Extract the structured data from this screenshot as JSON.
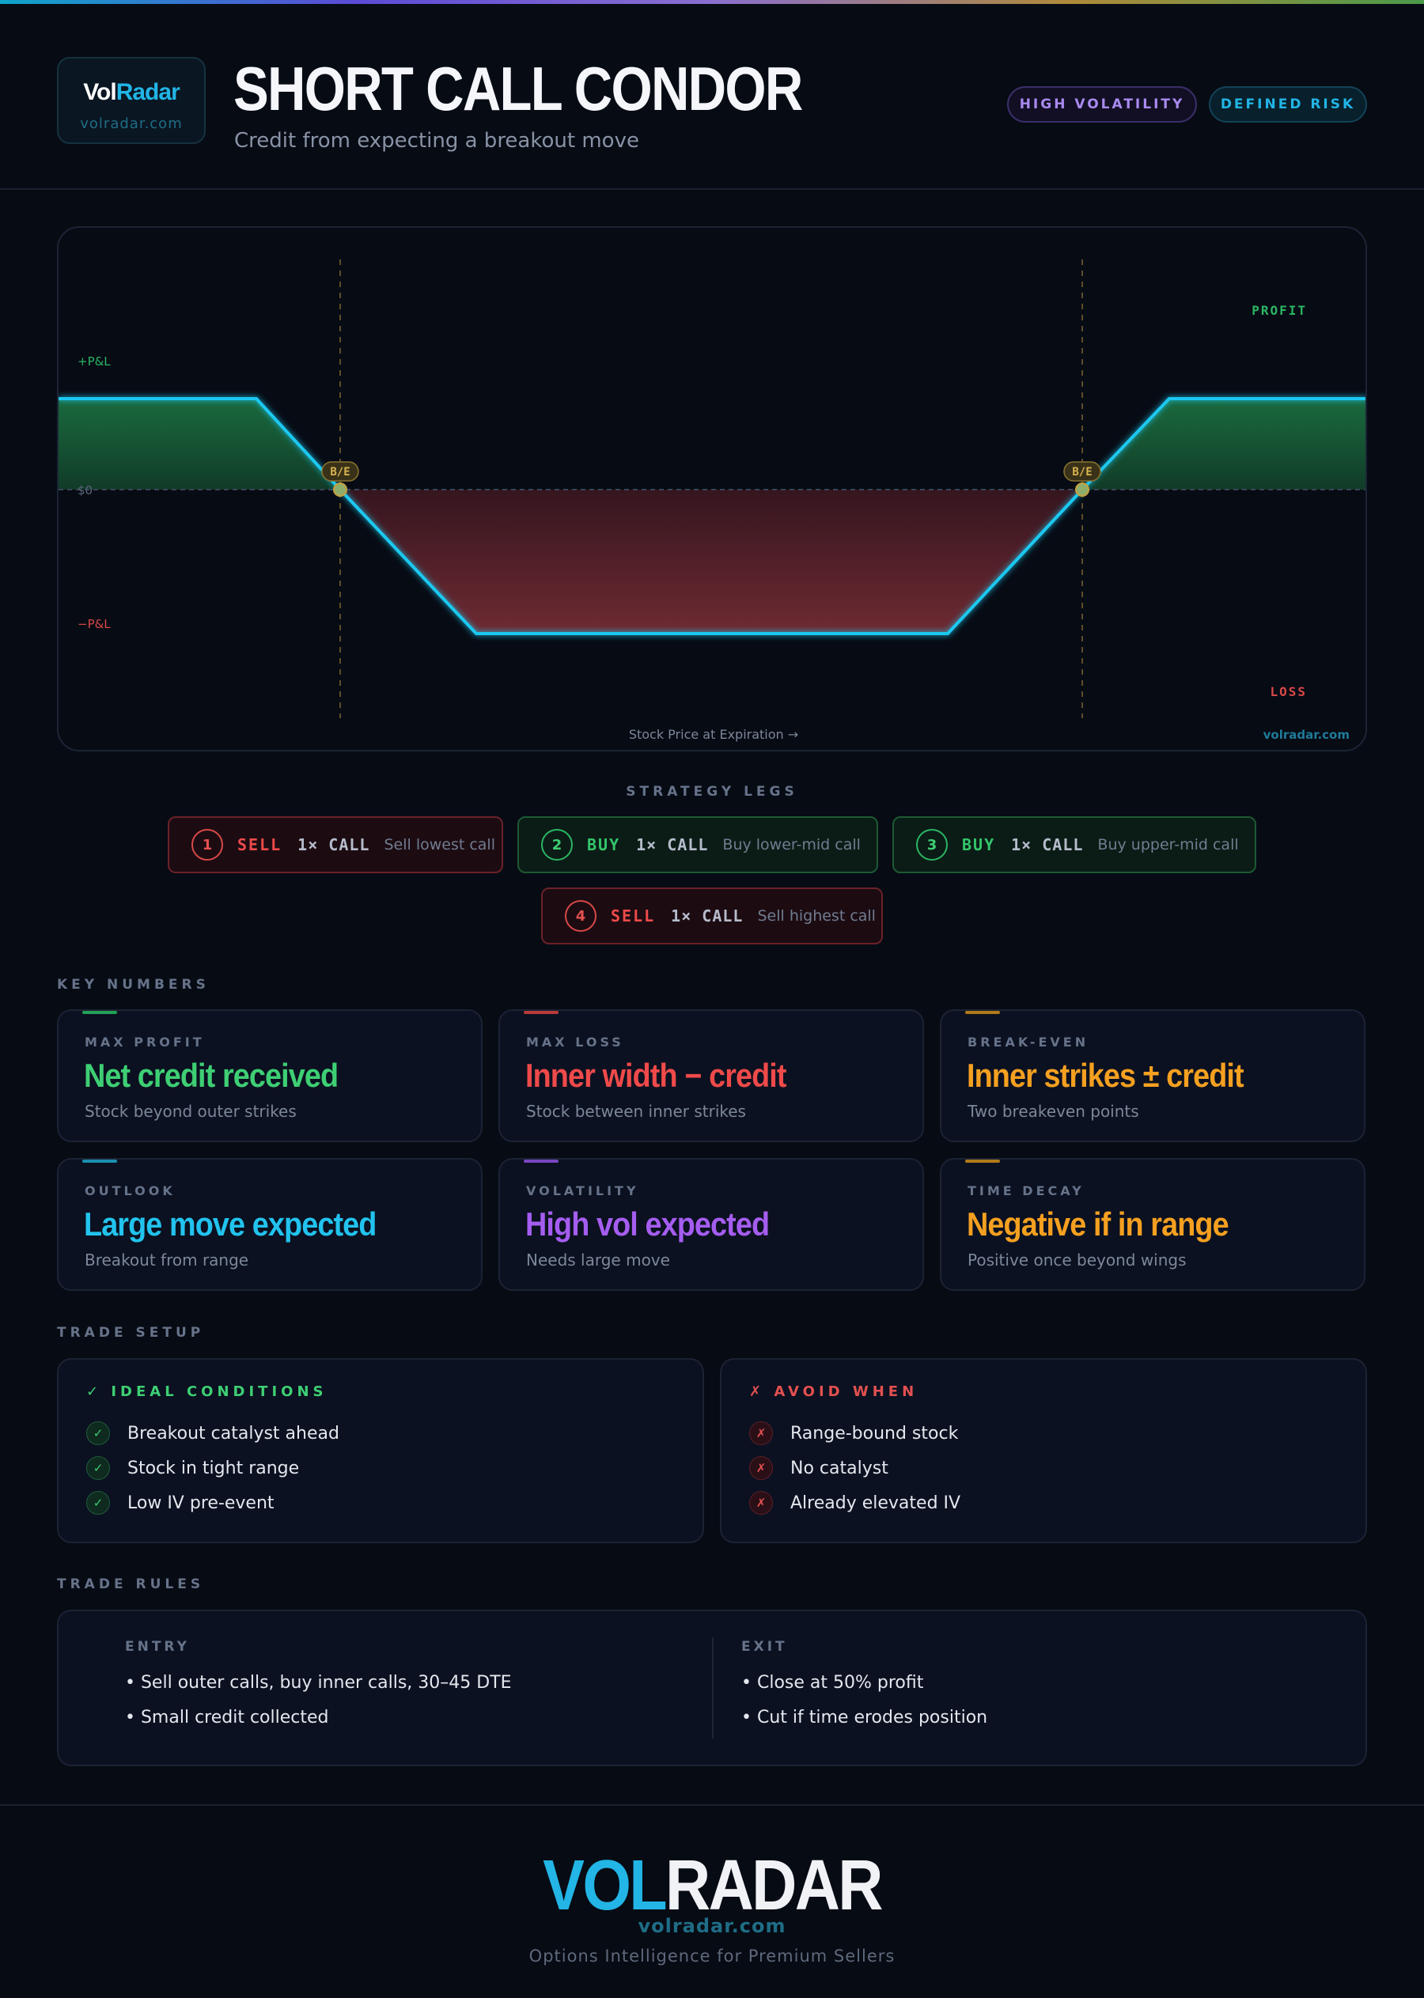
{
  "brand": {
    "vol": "Vol",
    "radar": "Radar",
    "url": "volradar.com"
  },
  "header": {
    "title": "SHORT CALL CONDOR",
    "subtitle": "Credit from expecting a breakout move",
    "badges": [
      "HIGH VOLATILITY",
      "DEFINED RISK"
    ]
  },
  "diagram": {
    "profit_label": "PROFIT",
    "loss_label": "LOSS",
    "pos_pl_label": "+P&L",
    "zero_label": "$0",
    "neg_pl_label": "−P&L",
    "breakeven_label": "B/E",
    "x_axis_label": "Stock Price at Expiration →",
    "watermark": "volradar.com",
    "colors": {
      "payoff_line": "#1ec8f0",
      "profit_fill": "#1a6a3c",
      "loss_fill": "#7a2a30",
      "breakeven": "#c8a03c"
    }
  },
  "legs_label": "STRATEGY LEGS",
  "legs": [
    {
      "num": "1",
      "action": "SELL",
      "qty": "1× CALL",
      "desc": "Sell lowest call"
    },
    {
      "num": "2",
      "action": "BUY",
      "qty": "1× CALL",
      "desc": "Buy lower-mid call"
    },
    {
      "num": "3",
      "action": "BUY",
      "qty": "1× CALL",
      "desc": "Buy upper-mid call"
    },
    {
      "num": "4",
      "action": "SELL",
      "qty": "1× CALL",
      "desc": "Sell highest call"
    }
  ],
  "key_numbers_label": "KEY NUMBERS",
  "cards": [
    {
      "label": "MAX PROFIT",
      "value": "Net credit received",
      "sub": "Stock beyond outer strikes",
      "color": "#3ecf74"
    },
    {
      "label": "MAX LOSS",
      "value": "Inner width − credit",
      "sub": "Stock between inner strikes",
      "color": "#ef4a4a"
    },
    {
      "label": "BREAK-EVEN",
      "value": "Inner strikes ± credit",
      "sub": "Two breakeven points",
      "color": "#f5a020"
    },
    {
      "label": "OUTLOOK",
      "value": "Large move expected",
      "sub": "Breakout from range",
      "color": "#22c3ee"
    },
    {
      "label": "VOLATILITY",
      "value": "High vol expected",
      "sub": "Needs large move",
      "color": "#a55df0"
    },
    {
      "label": "TIME DECAY",
      "value": "Negative if in range",
      "sub": "Positive once beyond wings",
      "color": "#f5a020"
    }
  ],
  "trade_setup_label": "TRADE SETUP",
  "ideal": {
    "title": "✓ IDEAL CONDITIONS",
    "items": [
      "Breakout catalyst ahead",
      "Stock in tight range",
      "Low IV pre-event"
    ]
  },
  "avoid": {
    "title": "✗ AVOID WHEN",
    "items": [
      "Range-bound stock",
      "No catalyst",
      "Already elevated IV"
    ]
  },
  "trade_rules_label": "TRADE RULES",
  "entry": {
    "title": "ENTRY",
    "items": [
      "• Sell outer calls, buy inner calls, 30–45 DTE",
      "• Small credit collected"
    ]
  },
  "exit": {
    "title": "EXIT",
    "items": [
      "• Close at 50% profit",
      "• Cut if time erodes position"
    ]
  },
  "footer": {
    "vol": "VOL",
    "radar": "RADAR",
    "url": "volradar.com",
    "tagline": "Options Intelligence for Premium Sellers"
  }
}
